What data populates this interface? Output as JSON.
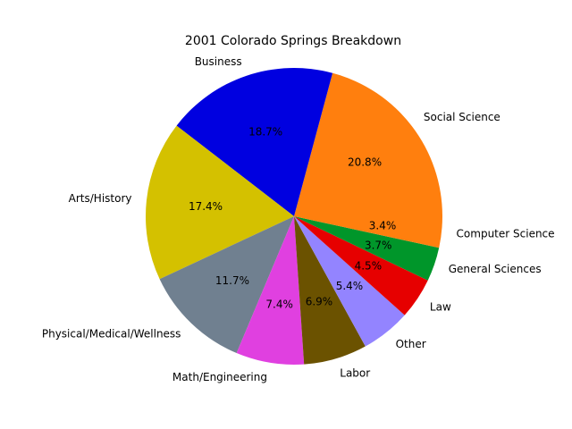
{
  "chart_data": {
    "type": "pie",
    "title": "2001 Colorado Springs Breakdown",
    "slices": [
      {
        "label": "Social Science",
        "value": 20.8,
        "pct_label": "20.8%",
        "color": "#ff7f0e"
      },
      {
        "label": "Business",
        "value": 18.7,
        "pct_label": "18.7%",
        "color": "#0000e0"
      },
      {
        "label": "Arts/History",
        "value": 17.4,
        "pct_label": "17.4%",
        "color": "#d4c100"
      },
      {
        "label": "Physical/Medical/Wellness",
        "value": 11.7,
        "pct_label": "11.7%",
        "color": "#708090"
      },
      {
        "label": "Math/Engineering",
        "value": 7.4,
        "pct_label": "7.4%",
        "color": "#e040e0"
      },
      {
        "label": "Labor",
        "value": 6.9,
        "pct_label": "6.9%",
        "color": "#6b5200"
      },
      {
        "label": "Other",
        "value": 5.4,
        "pct_label": "5.4%",
        "color": "#9384ff"
      },
      {
        "label": "Law",
        "value": 4.5,
        "pct_label": "4.5%",
        "color": "#e60000"
      },
      {
        "label": "General Sciences",
        "value": 3.7,
        "pct_label": "3.7%",
        "color": "#00962a"
      },
      {
        "label": "Computer Science",
        "value": 3.4,
        "pct_label": "3.4%",
        "color": "#ff7f0e"
      }
    ],
    "start_angle_deg": 0,
    "direction": "counterclockwise"
  }
}
